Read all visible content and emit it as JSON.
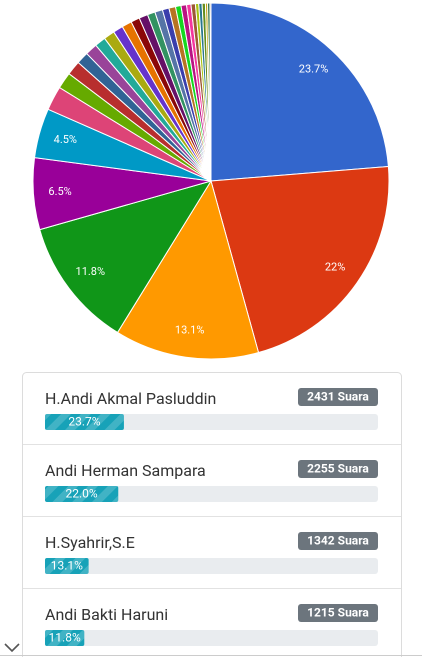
{
  "chart_data": {
    "type": "pie",
    "categories": [
      null,
      null,
      null,
      null,
      null,
      null,
      null,
      null,
      null,
      null,
      null,
      null,
      null,
      null,
      null,
      null,
      null,
      null,
      null,
      null,
      null,
      null,
      null,
      null,
      null,
      null,
      null,
      null,
      null,
      null,
      null
    ],
    "values": [
      23.7,
      22,
      13.1,
      11.8,
      6.5,
      4.5,
      2.2,
      1.5,
      1.3,
      1.1,
      1.1,
      1.0,
      1.0,
      0.9,
      0.9,
      0.8,
      0.8,
      0.7,
      0.7,
      0.6,
      0.6,
      0.5,
      0.5,
      0.4,
      0.4,
      0.3,
      0.3,
      0.3,
      0.2,
      0.2,
      0.1
    ],
    "value_labels": [
      "23.7%",
      "22%",
      "13.1%",
      "11.8%",
      "6.5%",
      "4.5%",
      null,
      null,
      null,
      null,
      null,
      null,
      null,
      null,
      null,
      null,
      null,
      null,
      null,
      null,
      null,
      null,
      null,
      null,
      null,
      null,
      null,
      null,
      null,
      null,
      null
    ],
    "colors": [
      "#3366cc",
      "#dc3912",
      "#ff9900",
      "#109618",
      "#990099",
      "#0099c6",
      "#dd4477",
      "#66aa00",
      "#b82e2e",
      "#316395",
      "#994499",
      "#22aa99",
      "#aaaa11",
      "#6633cc",
      "#e67300",
      "#8b0707",
      "#651067",
      "#329262",
      "#5574a6",
      "#3b3eac",
      "#b77322",
      "#16d620",
      "#b91383",
      "#f4359e",
      "#9c5935",
      "#a9c413",
      "#2a778d",
      "#668d1c",
      "#bea413",
      "#0c5922",
      "#743411"
    ]
  },
  "candidates": [
    {
      "name": "H.Andi Akmal Pasluddin",
      "votes": "2431 Suara",
      "percent": 23.7,
      "percent_label": "23.7%"
    },
    {
      "name": "Andi Herman Sampara",
      "votes": "2255 Suara",
      "percent": 22.0,
      "percent_label": "22.0%"
    },
    {
      "name": "H.Syahrir,S.E",
      "votes": "1342 Suara",
      "percent": 13.1,
      "percent_label": "13.1%"
    },
    {
      "name": "Andi Bakti Haruni",
      "votes": "1215 Suara",
      "percent": 11.8,
      "percent_label": "11.8%"
    }
  ]
}
